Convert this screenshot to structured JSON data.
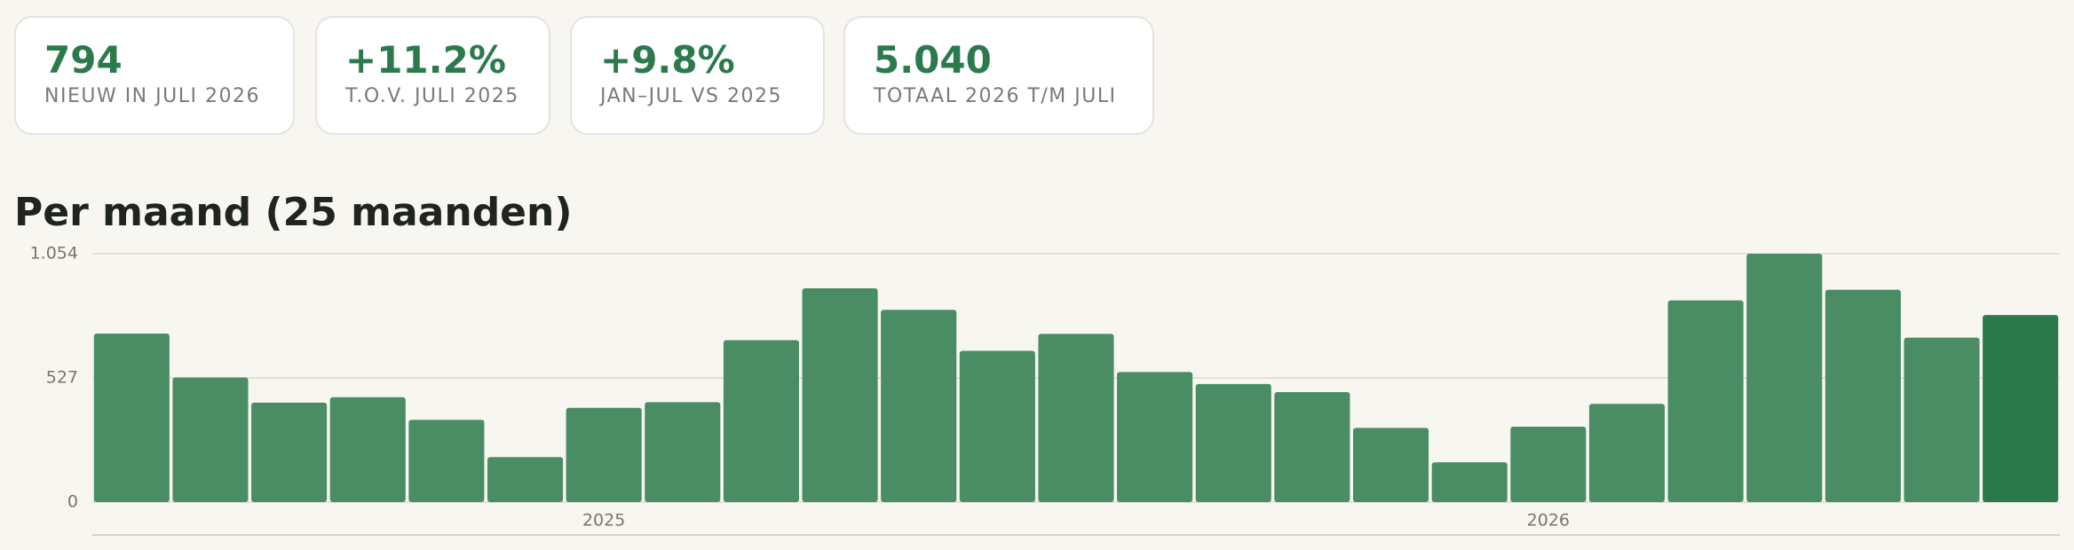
{
  "kpis": [
    {
      "value": "794",
      "label": "NIEUW IN JULI 2026"
    },
    {
      "value": "+11.2%",
      "label": "T.O.V. JULI 2025"
    },
    {
      "value": "+9.8%",
      "label": "JAN–JUL VS 2025"
    },
    {
      "value": "5.040",
      "label": "TOTAAL 2026 T/M JULI"
    }
  ],
  "chart_data": {
    "type": "bar",
    "title": "Per maand (25 maanden)",
    "categories": [
      null,
      null,
      null,
      null,
      null,
      null,
      "2025",
      null,
      null,
      null,
      null,
      null,
      null,
      null,
      null,
      null,
      null,
      null,
      "2026",
      null,
      null,
      null,
      null,
      null,
      null
    ],
    "values": [
      715,
      529,
      422,
      445,
      349,
      191,
      400,
      424,
      687,
      907,
      816,
      642,
      714,
      552,
      501,
      467,
      315,
      169,
      320,
      417,
      856,
      1054,
      901,
      698,
      794
    ],
    "colors": [
      "#4a8d65",
      "#4a8d65",
      "#4a8d65",
      "#4a8d65",
      "#4a8d65",
      "#4a8d65",
      "#4a8d65",
      "#4a8d65",
      "#4a8d65",
      "#4a8d65",
      "#4a8d65",
      "#4a8d65",
      "#4a8d65",
      "#4a8d65",
      "#4a8d65",
      "#4a8d65",
      "#4a8d65",
      "#4a8d65",
      "#4a8d65",
      "#4a8d65",
      "#4a8d65",
      "#4a8d65",
      "#4a8d65",
      "#4a8d65",
      "#2c7a4c"
    ],
    "ylim": [
      0,
      1054
    ],
    "yticks": [
      0,
      527,
      {
        "value": 1054,
        "label": "1.054"
      }
    ],
    "grid": true
  }
}
